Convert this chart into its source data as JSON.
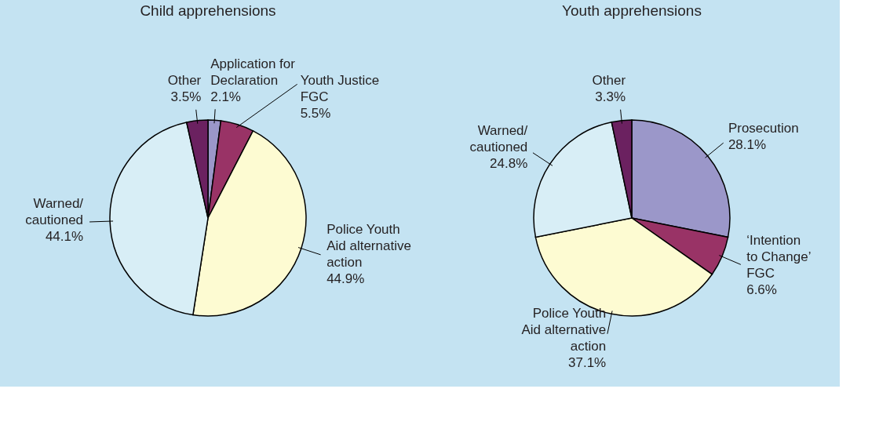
{
  "chart_data": [
    {
      "type": "pie",
      "title": "Child apprehensions",
      "categories": [
        "Application for\nDeclaration",
        "Youth Justice\nFGC",
        "Police Youth\nAid alternative\naction",
        "Warned/\ncautioned",
        "Other"
      ],
      "values": [
        2.1,
        5.5,
        44.9,
        44.1,
        3.5
      ],
      "value_labels": [
        "2.1%",
        "5.5%",
        "44.9%",
        "44.1%",
        "3.5%"
      ],
      "colors": [
        "#9b97c9",
        "#993366",
        "#fdfbd2",
        "#d8eef6",
        "#6b2160"
      ]
    },
    {
      "type": "pie",
      "title": "Youth apprehensions",
      "categories": [
        "Prosecution",
        "‘Intention\nto Change’\nFGC",
        "Police Youth\nAid alternative\naction",
        "Warned/\ncautioned",
        "Other"
      ],
      "values": [
        28.1,
        6.6,
        37.1,
        24.8,
        3.3
      ],
      "value_labels": [
        "28.1%",
        "6.6%",
        "37.1%",
        "24.8%",
        "3.3%"
      ],
      "colors": [
        "#9b97c9",
        "#993366",
        "#fdfbd2",
        "#d8eef6",
        "#6b2160"
      ]
    }
  ]
}
